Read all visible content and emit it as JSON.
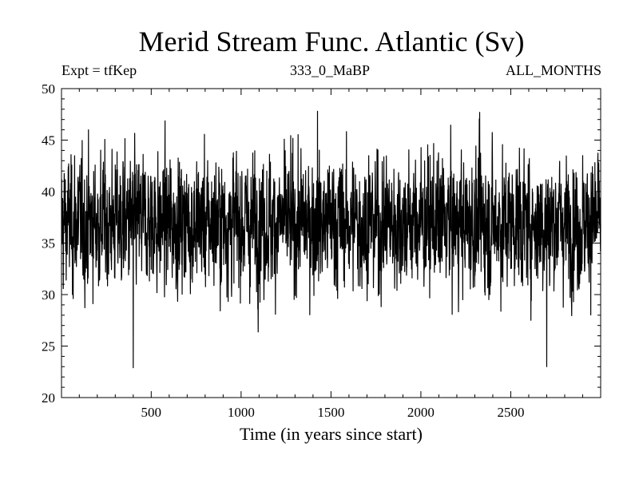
{
  "chart_data": {
    "type": "line",
    "title": "Merid Stream Func. Atlantic (Sv)",
    "header_left": "Expt = tfKep",
    "header_center": "333_0_MaBP",
    "header_right": "ALL_MONTHS",
    "xlabel": "Time (in years since start)",
    "ylabel": "",
    "xlim": [
      1,
      3000
    ],
    "ylim": [
      20,
      50
    ],
    "x_ticks": [
      500,
      1000,
      1500,
      2000,
      2500
    ],
    "y_ticks": [
      20,
      25,
      30,
      35,
      40,
      45,
      50
    ],
    "grid": false,
    "line_color": "#000000",
    "series": [
      {
        "mean": 37,
        "typical_range": [
          32,
          42
        ],
        "max": 47.8,
        "min": 22.9,
        "min_x": 400,
        "min_x_2": 2700,
        "x_start": 1,
        "x_end": 3000,
        "x_step": 1
      }
    ]
  }
}
